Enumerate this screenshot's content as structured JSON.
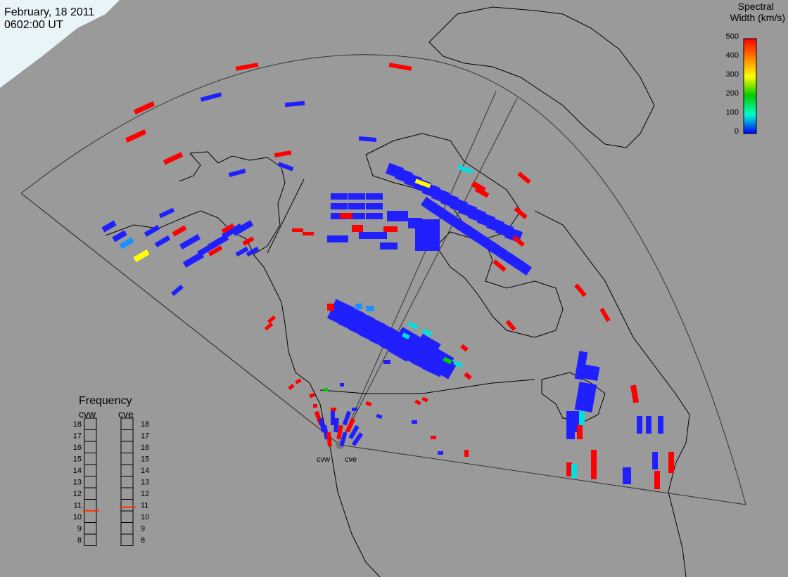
{
  "header": {
    "date": "February, 18 2011",
    "time": "0602:00 UT"
  },
  "colorbar": {
    "title_line1": "Spectral",
    "title_line2": "Width (km/s)",
    "ticks": [
      "500",
      "400",
      "300",
      "200",
      "100",
      "0"
    ],
    "gradient": [
      "#ff0000",
      "#ff8000",
      "#ffff00",
      "#00cc00",
      "#00ffcc",
      "#0000ff"
    ]
  },
  "radars": {
    "west_label": "cvw",
    "east_label": "cve"
  },
  "frequency": {
    "title": "Frequency",
    "cvw_label": "cvw",
    "cve_label": "cve",
    "scale": [
      "18",
      "17",
      "16",
      "15",
      "14",
      "13",
      "12",
      "11",
      "10",
      "9",
      "8"
    ],
    "cvw_value": 10.5,
    "cve_value": 10.8,
    "marker_color": "#ff3300"
  },
  "colors": {
    "background": "#9a9a9a",
    "ice": "#e8f4f8",
    "coast": "#000000",
    "low_width": "#2020ff",
    "high_width": "#ff0000",
    "mid_width": "#00e0e0",
    "yellow": "#ffff00",
    "green": "#00d000",
    "lightblue": "#2090ff"
  }
}
